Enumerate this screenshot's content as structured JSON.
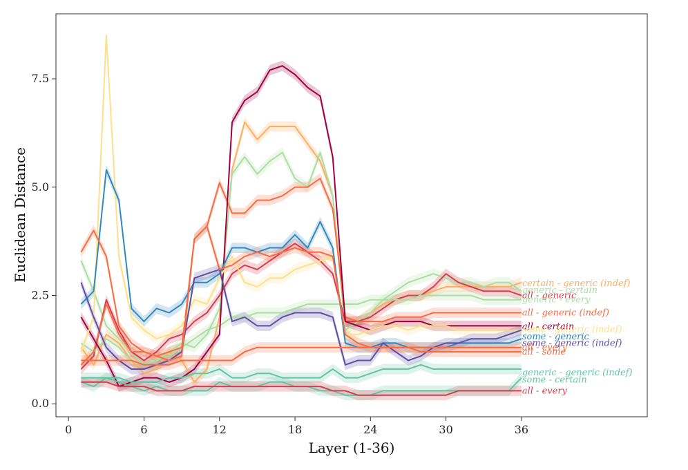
{
  "chart_data": {
    "type": "line",
    "title": "",
    "xlabel": "Layer (1-36)",
    "ylabel": "Euclidean Distance",
    "xlim": [
      -1,
      46
    ],
    "ylim": [
      -0.3,
      9.0
    ],
    "xticks": [
      0,
      6,
      12,
      18,
      24,
      30,
      36
    ],
    "xtick_labels": [
      "0",
      "6",
      "12",
      "18",
      "24",
      "30",
      "36"
    ],
    "yticks": [
      0.0,
      2.5,
      5.0,
      7.5
    ],
    "ytick_labels": [
      "0.0",
      "2.5",
      "5.0",
      "7.5"
    ],
    "grid": false,
    "x": [
      1,
      2,
      3,
      4,
      5,
      6,
      7,
      8,
      9,
      10,
      11,
      12,
      13,
      14,
      15,
      16,
      17,
      18,
      19,
      20,
      21,
      22,
      23,
      24,
      25,
      26,
      27,
      28,
      29,
      30,
      31,
      32,
      33,
      34,
      35,
      36
    ],
    "series": [
      {
        "name": "certain - generic (indef)",
        "color": "#FDAE61",
        "values": [
          1.3,
          0.9,
          1.6,
          1.4,
          1.0,
          0.7,
          0.8,
          1.2,
          1.0,
          0.5,
          0.8,
          2.0,
          5.4,
          6.5,
          6.1,
          6.4,
          6.4,
          6.4,
          6.0,
          5.6,
          4.8,
          1.9,
          1.9,
          2.1,
          2.3,
          2.4,
          2.5,
          2.5,
          2.6,
          2.7,
          2.7,
          2.7,
          2.7,
          2.7,
          2.7,
          2.8
        ],
        "label_y": 2.78
      },
      {
        "name": "generic - certain",
        "color": "#ABDDA4",
        "values": [
          3.3,
          2.6,
          1.8,
          1.5,
          1.2,
          0.9,
          1.0,
          1.2,
          1.4,
          1.3,
          1.6,
          2.2,
          5.3,
          5.7,
          5.3,
          5.6,
          5.8,
          5.2,
          5.0,
          5.8,
          4.8,
          1.7,
          1.9,
          2.1,
          2.4,
          2.6,
          2.8,
          2.9,
          3.0,
          2.9,
          2.8,
          2.8,
          2.7,
          2.8,
          2.8,
          2.6
        ],
        "label_y": 2.62
      },
      {
        "name": "all - generic",
        "color": "#D53E4F",
        "values": [
          0.8,
          1.1,
          2.4,
          1.7,
          1.2,
          1.0,
          1.2,
          1.5,
          1.6,
          1.9,
          2.1,
          2.5,
          3.0,
          3.2,
          3.1,
          3.3,
          3.5,
          3.7,
          3.5,
          3.3,
          3.0,
          1.9,
          1.9,
          2.0,
          2.2,
          2.4,
          2.5,
          2.5,
          2.7,
          3.0,
          2.8,
          2.7,
          2.6,
          2.6,
          2.6,
          2.5
        ],
        "label_y": 2.5
      },
      {
        "name": "generic - every",
        "color": "#ABDDA4",
        "values": [
          1.4,
          1.2,
          1.5,
          1.3,
          1.0,
          0.9,
          1.0,
          1.1,
          1.3,
          1.5,
          1.7,
          1.8,
          2.0,
          2.0,
          2.1,
          2.1,
          2.1,
          2.2,
          2.3,
          2.3,
          2.3,
          2.3,
          2.3,
          2.4,
          2.4,
          2.4,
          2.4,
          2.5,
          2.5,
          2.5,
          2.5,
          2.5,
          2.4,
          2.4,
          2.4,
          2.4
        ],
        "label_y": 2.4
      },
      {
        "name": "all - generic (indef)",
        "color": "#F46D43",
        "values": [
          0.9,
          1.2,
          2.3,
          1.6,
          1.2,
          1.2,
          1.1,
          1.2,
          1.3,
          3.8,
          4.1,
          5.1,
          4.4,
          4.4,
          4.7,
          4.7,
          4.8,
          5.0,
          5.0,
          5.2,
          4.5,
          2.0,
          1.9,
          1.9,
          1.9,
          2.0,
          2.0,
          2.0,
          2.1,
          2.1,
          2.1,
          2.1,
          2.1,
          2.1,
          2.1,
          2.1
        ],
        "label_y": 2.1
      },
      {
        "name": "all - certain",
        "color": "#9E0142",
        "values": [
          2.0,
          1.5,
          1.0,
          0.4,
          0.5,
          0.6,
          0.6,
          0.5,
          0.6,
          0.8,
          1.2,
          1.6,
          6.5,
          7.0,
          7.2,
          7.7,
          7.8,
          7.6,
          7.3,
          7.1,
          5.7,
          1.9,
          1.8,
          1.7,
          1.8,
          1.9,
          1.9,
          1.9,
          1.8,
          1.8,
          1.8,
          1.8,
          1.8,
          1.8,
          1.8,
          1.8
        ],
        "label_y": 1.78
      },
      {
        "name": "some - generic (indef)",
        "color": "#FEE08B",
        "values": [
          1.2,
          2.0,
          8.5,
          3.4,
          2.0,
          1.7,
          1.5,
          1.6,
          1.8,
          2.4,
          2.3,
          2.9,
          3.4,
          2.8,
          2.7,
          2.9,
          2.9,
          3.1,
          3.2,
          3.3,
          3.4,
          1.6,
          1.6,
          1.7,
          1.8,
          1.8,
          1.7,
          1.8,
          1.8,
          1.8,
          1.7,
          1.7,
          1.7,
          1.7,
          1.7,
          1.7
        ],
        "label_y": 1.72
      },
      {
        "name": "some - generic",
        "color": "#3288BD",
        "values": [
          2.3,
          2.6,
          5.4,
          4.7,
          2.2,
          1.9,
          2.2,
          2.1,
          2.3,
          2.8,
          2.8,
          3.0,
          3.6,
          3.6,
          3.5,
          3.6,
          3.6,
          3.9,
          3.6,
          4.2,
          3.6,
          1.4,
          1.3,
          1.3,
          1.4,
          1.4,
          1.3,
          1.3,
          1.3,
          1.3,
          1.4,
          1.4,
          1.4,
          1.4,
          1.4,
          1.5
        ],
        "label_y": 1.55
      },
      {
        "name": "some - generic (indef)",
        "color": "#5E4FA2",
        "values": [
          2.8,
          2.0,
          1.3,
          1.0,
          0.8,
          0.8,
          0.9,
          1.0,
          1.2,
          2.9,
          3.0,
          3.1,
          1.9,
          2.0,
          1.8,
          1.8,
          2.0,
          2.1,
          2.1,
          2.1,
          2.0,
          0.9,
          1.0,
          1.0,
          1.4,
          1.2,
          1.0,
          1.1,
          1.3,
          1.4,
          1.4,
          1.5,
          1.5,
          1.5,
          1.6,
          1.7
        ],
        "label_y": 1.4
      },
      {
        "name": "all - every",
        "color": "#F46D43",
        "values": [
          3.5,
          4.0,
          3.4,
          1.8,
          1.4,
          1.2,
          1.1,
          1.0,
          1.1,
          3.8,
          4.1,
          3.1,
          3.2,
          3.4,
          3.5,
          3.4,
          3.5,
          3.6,
          3.5,
          3.5,
          3.4,
          1.6,
          1.4,
          1.3,
          1.3,
          1.3,
          1.3,
          1.3,
          1.3,
          1.3,
          1.3,
          1.3,
          1.3,
          1.3,
          1.3,
          1.3
        ],
        "label_y": 1.3
      },
      {
        "name": "all - some",
        "color": "#F46D43",
        "values": [
          1.0,
          1.0,
          1.0,
          1.0,
          1.0,
          0.9,
          0.9,
          0.9,
          1.0,
          1.0,
          1.0,
          1.0,
          1.0,
          1.2,
          1.3,
          1.3,
          1.3,
          1.3,
          1.3,
          1.3,
          1.3,
          1.3,
          1.3,
          1.3,
          1.3,
          1.3,
          1.3,
          1.2,
          1.2,
          1.2,
          1.2,
          1.2,
          1.2,
          1.2,
          1.2,
          1.2
        ],
        "label_y": 1.2
      },
      {
        "name": "generic - generic (indef)",
        "color": "#66C2A5",
        "values": [
          0.6,
          0.6,
          0.6,
          0.6,
          0.5,
          0.5,
          0.5,
          0.6,
          0.6,
          0.7,
          0.7,
          0.8,
          0.6,
          0.6,
          0.7,
          0.7,
          0.6,
          0.6,
          0.6,
          0.6,
          0.8,
          0.6,
          0.6,
          0.7,
          0.8,
          0.8,
          0.8,
          0.9,
          0.8,
          0.8,
          0.8,
          0.8,
          0.8,
          0.8,
          0.8,
          0.8
        ],
        "label_y": 0.72
      },
      {
        "name": "some - certain",
        "color": "#66C2A5",
        "values": [
          0.5,
          0.4,
          0.6,
          0.5,
          0.4,
          0.3,
          0.4,
          0.3,
          0.3,
          0.3,
          0.3,
          0.5,
          0.4,
          0.4,
          0.4,
          0.5,
          0.5,
          0.4,
          0.4,
          0.3,
          0.3,
          0.2,
          0.2,
          0.2,
          0.3,
          0.3,
          0.3,
          0.3,
          0.3,
          0.3,
          0.3,
          0.3,
          0.3,
          0.3,
          0.3,
          0.6
        ],
        "label_y": 0.55
      },
      {
        "name": "all - every",
        "color": "#D53E4F",
        "values": [
          0.5,
          0.5,
          0.5,
          0.4,
          0.4,
          0.4,
          0.3,
          0.3,
          0.3,
          0.4,
          0.4,
          0.4,
          0.4,
          0.4,
          0.4,
          0.4,
          0.4,
          0.4,
          0.4,
          0.4,
          0.3,
          0.3,
          0.2,
          0.2,
          0.2,
          0.2,
          0.2,
          0.2,
          0.2,
          0.2,
          0.3,
          0.3,
          0.3,
          0.3,
          0.3,
          0.3
        ],
        "label_y": 0.3
      }
    ]
  }
}
